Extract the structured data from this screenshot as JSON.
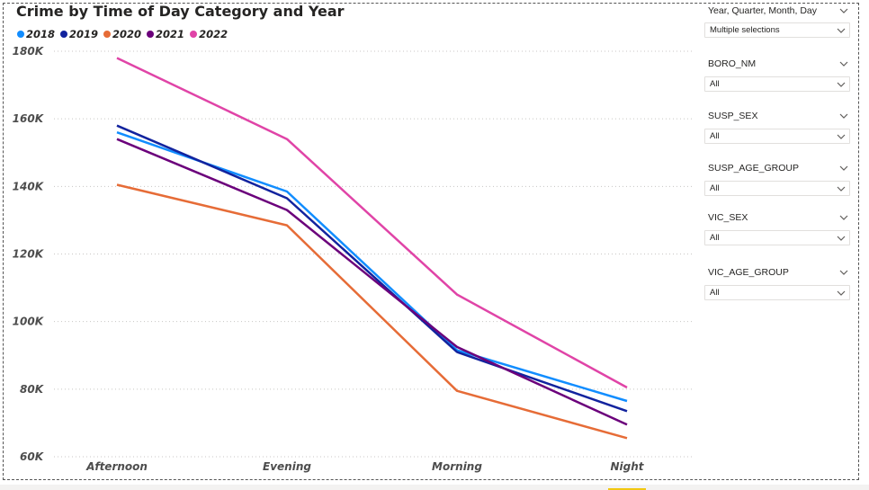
{
  "chart_data": {
    "type": "line",
    "title": "Crime by Time of Day Category and Year",
    "categories": [
      "Afternoon",
      "Evening",
      "Morning",
      "Night"
    ],
    "ytick_labels": [
      "180K",
      "160K",
      "140K",
      "120K",
      "100K",
      "80K",
      "60K"
    ],
    "yticks": [
      180000,
      160000,
      140000,
      120000,
      100000,
      80000,
      60000
    ],
    "ylim": [
      60000,
      180000
    ],
    "grid": true,
    "legend_position": "top-left",
    "series": [
      {
        "name": "2018",
        "color": "#118dff",
        "values": [
          156000,
          138500,
          91500,
          76500
        ]
      },
      {
        "name": "2019",
        "color": "#12239e",
        "values": [
          158000,
          136500,
          91000,
          73500
        ]
      },
      {
        "name": "2020",
        "color": "#e66c37",
        "values": [
          140500,
          128500,
          79500,
          65500
        ]
      },
      {
        "name": "2021",
        "color": "#6b007b",
        "values": [
          154000,
          133000,
          92500,
          69500
        ]
      },
      {
        "name": "2022",
        "color": "#e044a7",
        "values": [
          178000,
          154000,
          108000,
          80500
        ]
      }
    ]
  },
  "slicers": [
    {
      "title": "Year, Quarter, Month, Day",
      "value": "Multiple selections"
    },
    {
      "title": "BORO_NM",
      "value": "All"
    },
    {
      "title": "SUSP_SEX",
      "value": "All"
    },
    {
      "title": "SUSP_AGE_GROUP",
      "value": "All"
    },
    {
      "title": "VIC_SEX",
      "value": "All"
    },
    {
      "title": "VIC_AGE_GROUP",
      "value": "All"
    }
  ],
  "icons": {
    "slicer_chevron": "chevron-down-icon"
  }
}
